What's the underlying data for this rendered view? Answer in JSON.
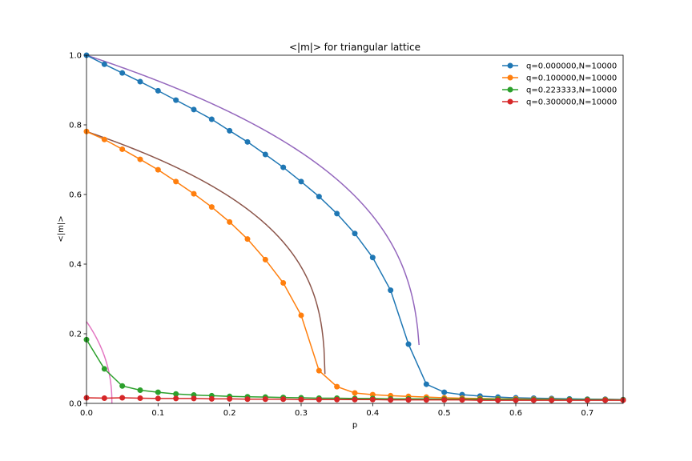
{
  "chart_data": {
    "type": "line",
    "title": "<|m|> for triangular lattice",
    "xlabel": "p",
    "ylabel": "<|m|>",
    "xlim": [
      0,
      0.75
    ],
    "ylim": [
      0,
      1.0
    ],
    "x_ticks": [
      0.0,
      0.1,
      0.2,
      0.3,
      0.4,
      0.5,
      0.6,
      0.7
    ],
    "y_ticks": [
      0.0,
      0.2,
      0.4,
      0.6,
      0.8,
      1.0
    ],
    "legend_position": "top-right",
    "grid": false,
    "x": [
      0.0,
      0.025,
      0.05,
      0.075,
      0.1,
      0.125,
      0.15,
      0.175,
      0.2,
      0.225,
      0.25,
      0.275,
      0.3,
      0.325,
      0.35,
      0.375,
      0.4,
      0.425,
      0.45,
      0.475,
      0.5,
      0.525,
      0.55,
      0.575,
      0.6,
      0.625,
      0.65,
      0.675,
      0.7,
      0.725,
      0.75
    ],
    "series": [
      {
        "name": "q=0.000000,N=10000",
        "color": "#1f77b4",
        "values": [
          1.0,
          0.974,
          0.949,
          0.924,
          0.898,
          0.871,
          0.844,
          0.816,
          0.783,
          0.751,
          0.715,
          0.678,
          0.637,
          0.594,
          0.545,
          0.488,
          0.419,
          0.325,
          0.17,
          0.055,
          0.032,
          0.025,
          0.021,
          0.018,
          0.016,
          0.015,
          0.014,
          0.013,
          0.012,
          0.012,
          0.011
        ]
      },
      {
        "name": "q=0.100000,N=10000",
        "color": "#ff7f0e",
        "values": [
          0.781,
          0.758,
          0.73,
          0.701,
          0.671,
          0.637,
          0.602,
          0.564,
          0.521,
          0.472,
          0.413,
          0.346,
          0.253,
          0.094,
          0.048,
          0.03,
          0.025,
          0.022,
          0.02,
          0.018,
          0.016,
          0.015,
          0.014,
          0.013,
          0.013,
          0.012,
          0.012,
          0.011,
          0.011,
          0.011,
          0.01
        ]
      },
      {
        "name": "q=0.223333,N=10000",
        "color": "#2ca02c",
        "values": [
          0.183,
          0.099,
          0.05,
          0.038,
          0.032,
          0.027,
          0.024,
          0.022,
          0.02,
          0.019,
          0.018,
          0.017,
          0.016,
          0.015,
          0.015,
          0.014,
          0.014,
          0.013,
          0.013,
          0.013,
          0.012,
          0.012,
          0.012,
          0.012,
          0.011,
          0.011,
          0.011,
          0.011,
          0.011,
          0.01,
          0.01
        ]
      },
      {
        "name": "q=0.300000,N=10000",
        "color": "#d62728",
        "values": [
          0.016,
          0.015,
          0.016,
          0.015,
          0.014,
          0.014,
          0.014,
          0.013,
          0.013,
          0.012,
          0.012,
          0.012,
          0.011,
          0.011,
          0.011,
          0.011,
          0.011,
          0.01,
          0.01,
          0.01,
          0.01,
          0.01,
          0.009,
          0.009,
          0.009,
          0.009,
          0.009,
          0.009,
          0.009,
          0.009,
          0.009
        ]
      }
    ],
    "fit_curves": [
      {
        "color": "#9467bd",
        "amplitude": 1.0,
        "pc": 0.4665,
        "beta": 0.318,
        "x_start": 0.0,
        "x_end": 0.4648
      },
      {
        "color": "#8c564b",
        "amplitude": 0.781,
        "pc": 0.3335,
        "beta": 0.3,
        "x_start": 0.0,
        "x_end": 0.3333
      },
      {
        "color": "#e377c2",
        "amplitude": 0.235,
        "pc": 0.0355,
        "beta": 0.45,
        "x_start": 0.0,
        "x_end": 0.0355
      }
    ]
  }
}
